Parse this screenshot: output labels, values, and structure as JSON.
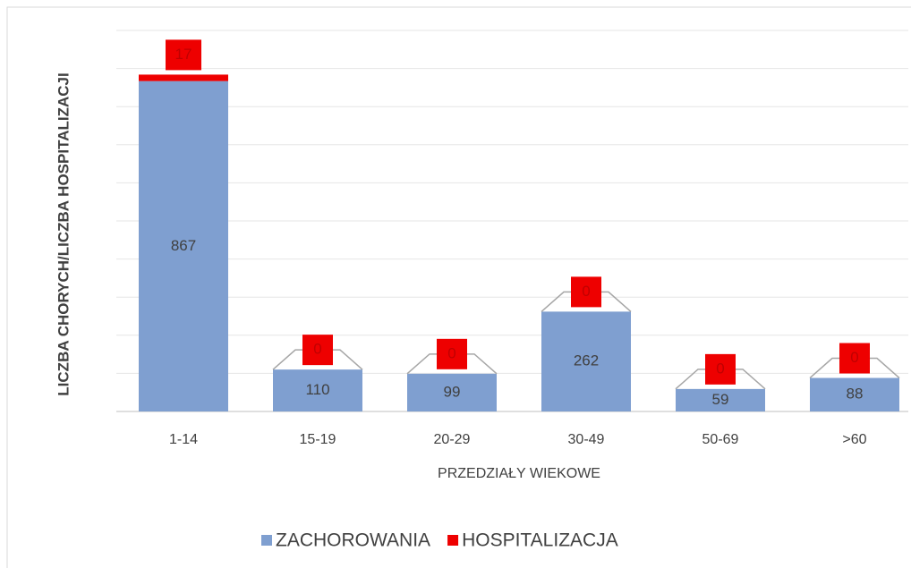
{
  "chart_data": {
    "type": "bar",
    "stacked": true,
    "categories": [
      "1-14",
      "15-19",
      "20-29",
      "30-49",
      "50-69",
      ">60"
    ],
    "series": [
      {
        "name": "ZACHOROWANIA",
        "color": "#7f9fd0",
        "values": [
          867,
          110,
          99,
          262,
          59,
          88
        ]
      },
      {
        "name": "HOSPITALIZACJA",
        "color": "#ee0000",
        "values": [
          17,
          0,
          0,
          0,
          0,
          0
        ]
      }
    ],
    "xlabel": "PRZEDZIAŁY WIEKOWE",
    "ylabel": "LICZBA CHORYCH/LICZBA HOSPITALIZACJI",
    "ylim": [
      0,
      1000
    ],
    "yticks": [
      0,
      100,
      200,
      300,
      400,
      500,
      600,
      700,
      800,
      900,
      1000
    ],
    "grid": true,
    "legend": "bottom"
  }
}
